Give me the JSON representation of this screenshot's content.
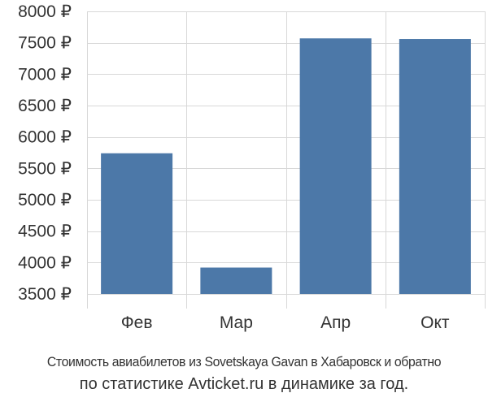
{
  "chart_data": {
    "type": "bar",
    "categories": [
      "Фев",
      "Мар",
      "Апр",
      "Окт"
    ],
    "values": [
      5740,
      3920,
      7570,
      7560
    ],
    "ylim": [
      3500,
      8000
    ],
    "yticks": [
      3500,
      4000,
      4500,
      5000,
      5500,
      6000,
      6500,
      7000,
      7500,
      8000
    ],
    "currency_suffix": " ₽",
    "grid": true,
    "bar_color": "#4c78a8",
    "title": "",
    "xlabel": "",
    "ylabel": ""
  },
  "caption": {
    "line1": "Стоимость авиабилетов из Sovetskaya Gavan в Хабаровск и обратно",
    "line2": "по статистике Avticket.ru в динамике за год."
  }
}
